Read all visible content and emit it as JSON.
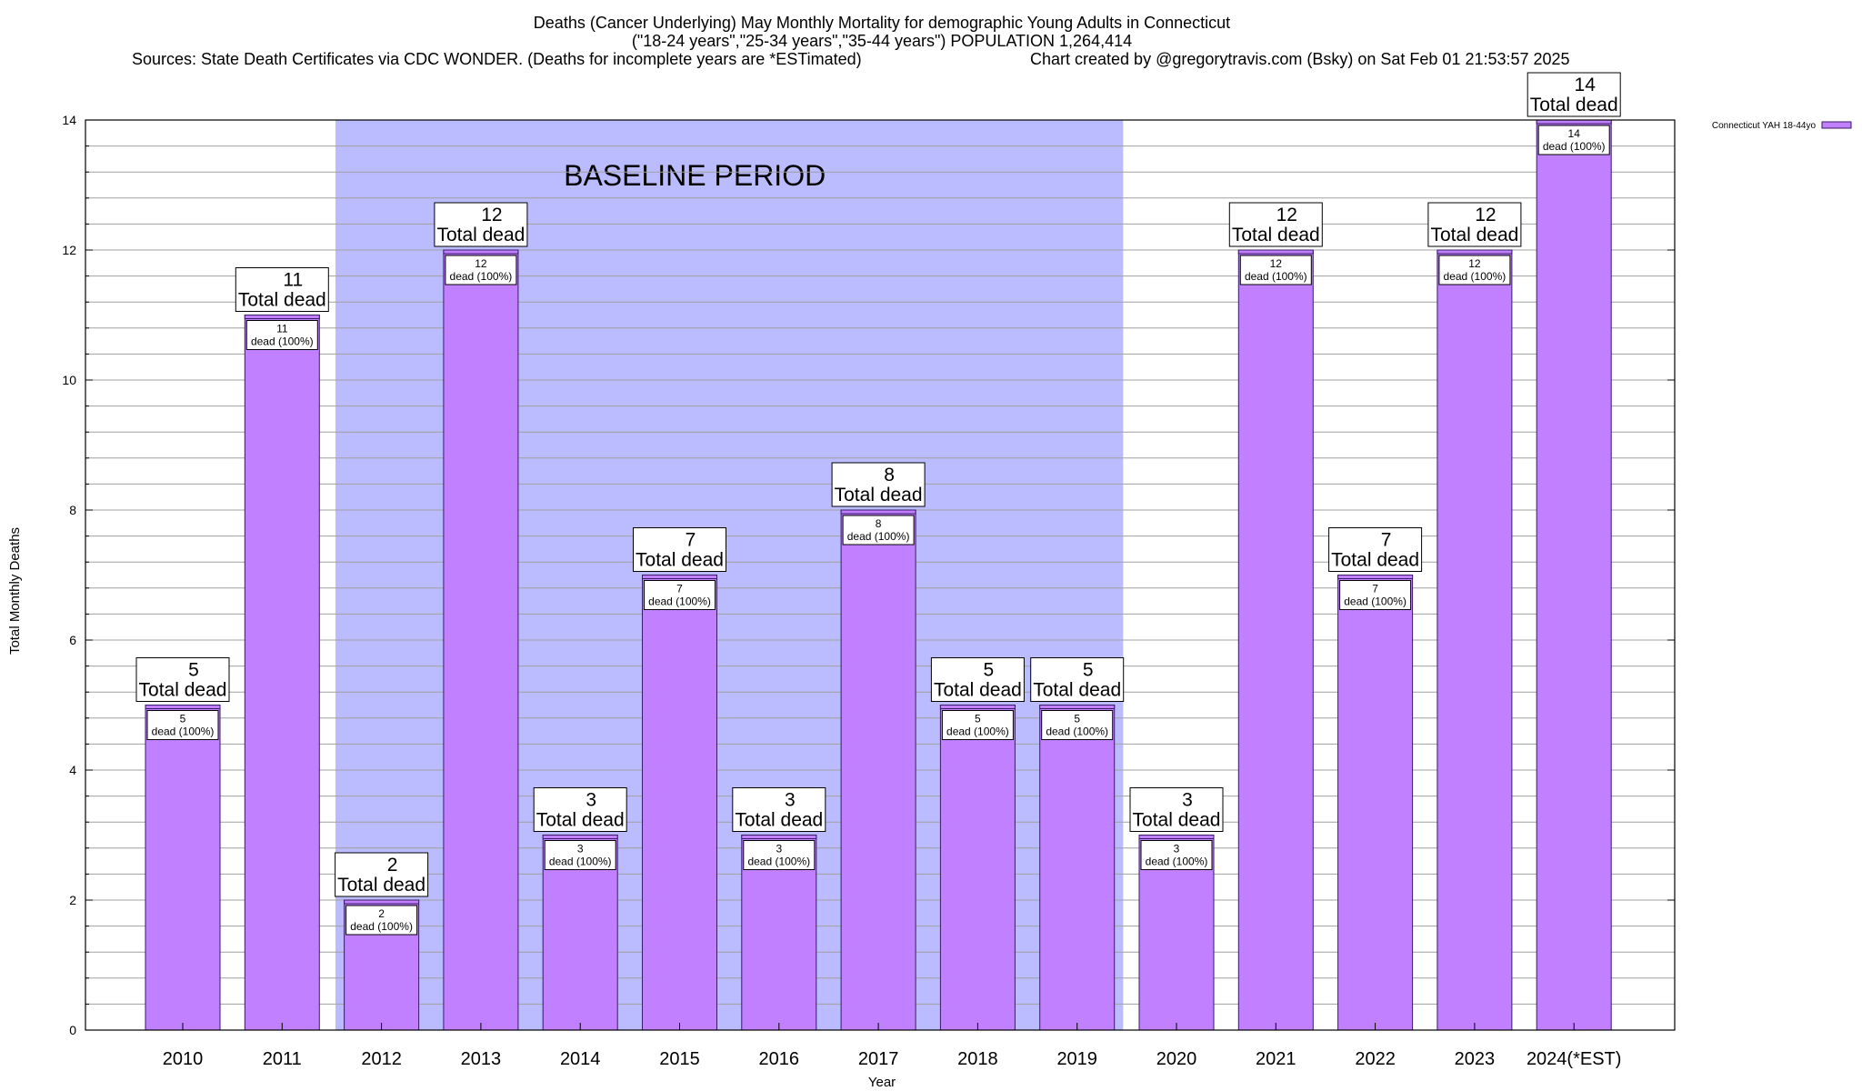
{
  "header": {
    "title_line1": "Deaths (Cancer Underlying) May Monthly Mortality for demographic Young Adults in Connecticut",
    "title_line2": "(\"18-24 years\",\"25-34 years\",\"35-44 years\") POPULATION 1,264,414",
    "title_line3_left": "Sources: State Death Certificates via CDC WONDER. (Deaths for incomplete years are *ESTimated)",
    "title_line3_right": "Chart created by @gregorytravis.com (Bsky) on Sat Feb 01 21:53:57 2025"
  },
  "chart_data": {
    "type": "bar",
    "categories": [
      "2010",
      "2011",
      "2012",
      "2013",
      "2014",
      "2015",
      "2016",
      "2017",
      "2018",
      "2019",
      "2020",
      "2021",
      "2022",
      "2023",
      "2024(*EST)"
    ],
    "series": [
      {
        "name": "Connecticut YAH 18-44yo",
        "values": [
          5,
          11,
          2,
          12,
          3,
          7,
          3,
          8,
          5,
          5,
          3,
          12,
          7,
          12,
          14
        ]
      }
    ],
    "total_label_word": "Total dead",
    "inner_label_suffix": "dead (100%)",
    "xlabel": "Year",
    "ylabel": "Total Monthly Deaths",
    "ylim": [
      0,
      14
    ],
    "yticks": [
      0,
      2,
      4,
      6,
      8,
      10,
      12,
      14
    ],
    "grid": true,
    "legend_position": "top-right",
    "baseline_period": {
      "label": "BASELINE PERIOD",
      "from_category": "2012",
      "to_category": "2019"
    },
    "colors": {
      "bar_fill": "#c080ff",
      "bar_top_stripe": "#c080ff",
      "bar_outline": "#3a1a6a",
      "baseline_shade": "#bbbbff",
      "grid": "#a0a0a0"
    }
  }
}
